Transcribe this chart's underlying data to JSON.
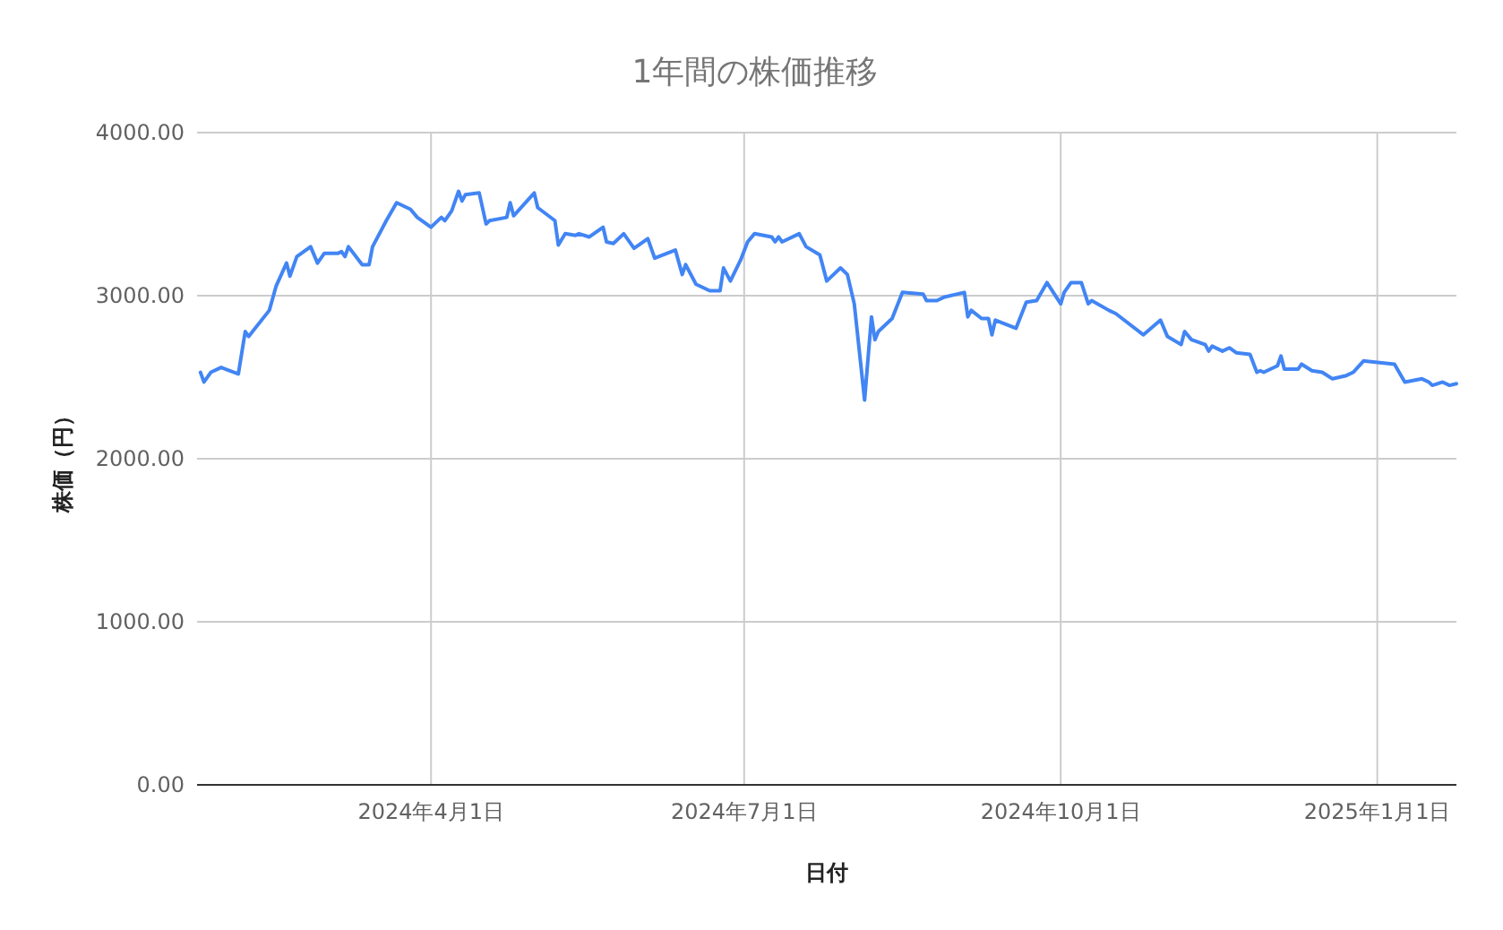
{
  "chart_data": {
    "type": "line",
    "title": "1年間の株価推移",
    "xlabel": "日付",
    "ylabel": "株価（円）",
    "xlim": [
      "2024-01-24",
      "2025-01-24"
    ],
    "xticks": [
      {
        "value": "2024-04-01",
        "label": "2024年4月1日"
      },
      {
        "value": "2024-07-01",
        "label": "2024年7月1日"
      },
      {
        "value": "2024-10-01",
        "label": "2024年10月1日"
      },
      {
        "value": "2025-01-01",
        "label": "2025年1月1日"
      }
    ],
    "ylim": [
      0,
      4000
    ],
    "yticks": [
      {
        "value": 0,
        "label": "0.00"
      },
      {
        "value": 1000,
        "label": "1000.00"
      },
      {
        "value": 2000,
        "label": "2000.00"
      },
      {
        "value": 3000,
        "label": "3000.00"
      },
      {
        "value": 4000,
        "label": "4000.00"
      }
    ],
    "grid": true,
    "x": [
      "2024-01-25",
      "2024-01-26",
      "2024-01-28",
      "2024-01-31",
      "2024-02-05",
      "2024-02-07",
      "2024-02-08",
      "2024-02-14",
      "2024-02-16",
      "2024-02-19",
      "2024-02-20",
      "2024-02-22",
      "2024-02-26",
      "2024-02-28",
      "2024-03-01",
      "2024-03-05",
      "2024-03-06",
      "2024-03-07",
      "2024-03-08",
      "2024-03-12",
      "2024-03-14",
      "2024-03-15",
      "2024-03-19",
      "2024-03-22",
      "2024-03-25",
      "2024-03-26",
      "2024-03-28",
      "2024-04-01",
      "2024-04-02",
      "2024-04-04",
      "2024-04-05",
      "2024-04-07",
      "2024-04-09",
      "2024-04-10",
      "2024-04-11",
      "2024-04-15",
      "2024-04-17",
      "2024-04-18",
      "2024-04-23",
      "2024-04-24",
      "2024-04-25",
      "2024-05-01",
      "2024-05-02",
      "2024-05-07",
      "2024-05-08",
      "2024-05-10",
      "2024-05-13",
      "2024-05-14",
      "2024-05-17",
      "2024-05-21",
      "2024-05-22",
      "2024-05-24",
      "2024-05-27",
      "2024-05-30",
      "2024-06-03",
      "2024-06-05",
      "2024-06-11",
      "2024-06-13",
      "2024-06-14",
      "2024-06-17",
      "2024-06-21",
      "2024-06-24",
      "2024-06-25",
      "2024-06-27",
      "2024-06-30",
      "2024-07-02",
      "2024-07-04",
      "2024-07-09",
      "2024-07-10",
      "2024-07-11",
      "2024-07-12",
      "2024-07-17",
      "2024-07-19",
      "2024-07-23",
      "2024-07-25",
      "2024-07-29",
      "2024-07-31",
      "2024-08-02",
      "2024-08-05",
      "2024-08-07",
      "2024-08-08",
      "2024-08-09",
      "2024-08-13",
      "2024-08-16",
      "2024-08-22",
      "2024-08-23",
      "2024-08-26",
      "2024-08-28",
      "2024-09-03",
      "2024-09-04",
      "2024-09-05",
      "2024-09-08",
      "2024-09-10",
      "2024-09-11",
      "2024-09-12",
      "2024-09-18",
      "2024-09-21",
      "2024-09-24",
      "2024-09-27",
      "2024-10-01",
      "2024-10-02",
      "2024-10-04",
      "2024-10-07",
      "2024-10-09",
      "2024-10-10",
      "2024-10-15",
      "2024-10-17",
      "2024-10-25",
      "2024-10-30",
      "2024-11-01",
      "2024-11-05",
      "2024-11-06",
      "2024-11-08",
      "2024-11-12",
      "2024-11-13",
      "2024-11-14",
      "2024-11-17",
      "2024-11-19",
      "2024-11-21",
      "2024-11-25",
      "2024-11-27",
      "2024-11-28",
      "2024-11-29",
      "2024-12-03",
      "2024-12-04",
      "2024-12-05",
      "2024-12-09",
      "2024-12-10",
      "2024-12-13",
      "2024-12-16",
      "2024-12-19",
      "2024-12-23",
      "2024-12-25",
      "2024-12-28",
      "2025-01-06",
      "2025-01-09",
      "2025-01-14",
      "2025-01-16",
      "2025-01-17",
      "2025-01-20",
      "2025-01-22",
      "2025-01-24"
    ],
    "series": [
      {
        "color": "#4285f4",
        "values": [
          2530,
          2470,
          2530,
          2560,
          2520,
          2780,
          2750,
          2910,
          3060,
          3200,
          3120,
          3240,
          3300,
          3200,
          3260,
          3260,
          3270,
          3240,
          3300,
          3190,
          3190,
          3300,
          3460,
          3570,
          3540,
          3530,
          3480,
          3420,
          3440,
          3480,
          3460,
          3520,
          3640,
          3580,
          3620,
          3630,
          3440,
          3460,
          3480,
          3570,
          3490,
          3630,
          3540,
          3460,
          3310,
          3380,
          3370,
          3380,
          3360,
          3420,
          3330,
          3320,
          3380,
          3290,
          3350,
          3230,
          3280,
          3130,
          3190,
          3070,
          3030,
          3030,
          3170,
          3090,
          3220,
          3330,
          3380,
          3360,
          3330,
          3360,
          3330,
          3380,
          3300,
          3250,
          3090,
          3170,
          3130,
          2950,
          2360,
          2870,
          2730,
          2780,
          2860,
          3020,
          3010,
          2970,
          2970,
          2990,
          3020,
          2870,
          2910,
          2860,
          2860,
          2760,
          2850,
          2800,
          2960,
          2970,
          3080,
          2950,
          3020,
          3080,
          3080,
          2950,
          2970,
          2910,
          2890,
          2760,
          2850,
          2750,
          2700,
          2780,
          2730,
          2700,
          2660,
          2690,
          2660,
          2680,
          2650,
          2640,
          2530,
          2540,
          2530,
          2570,
          2630,
          2550,
          2550,
          2580,
          2540,
          2530,
          2490,
          2510,
          2530,
          2600,
          2580,
          2470,
          2490,
          2470,
          2450,
          2470,
          2450,
          2460
        ]
      }
    ]
  }
}
